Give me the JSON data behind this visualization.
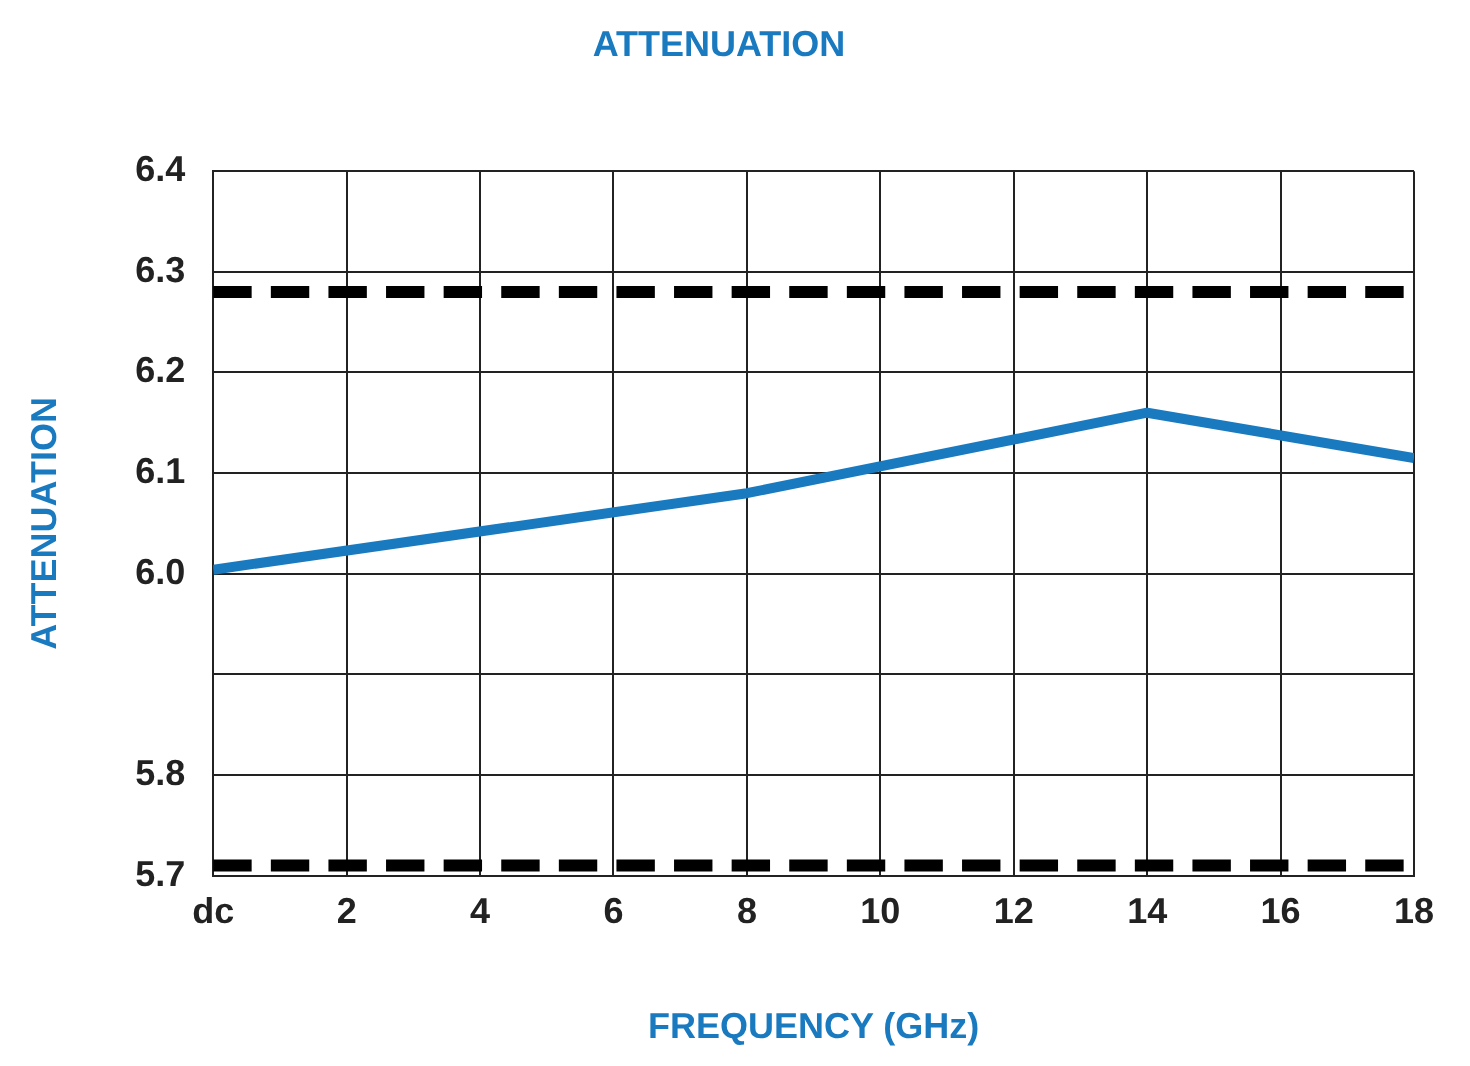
{
  "chart_data": {
    "type": "line",
    "title": "ATTENUATION",
    "xlabel": "FREQUENCY (GHz)",
    "ylabel": "ATTENUATION",
    "x": [
      0,
      8,
      14,
      18
    ],
    "series": [
      {
        "color": "#1a7ac0",
        "values": [
          6.004,
          6.08,
          6.16,
          6.115
        ]
      }
    ],
    "xlim": [
      0,
      18
    ],
    "xticks": [
      {
        "value": 0,
        "label": "dc"
      },
      2,
      4,
      6,
      8,
      10,
      12,
      14,
      16,
      18
    ],
    "ylim": [
      5.7,
      6.4
    ],
    "yticks": [
      5.7,
      5.8,
      {
        "value": 5.9,
        "label": null
      },
      {
        "value": 6.0,
        "label": "6.0"
      },
      6.1,
      6.2,
      6.3,
      6.4
    ],
    "ref_lines": [
      {
        "axis": "y",
        "value": 6.28,
        "color": "#000000",
        "line_style": "dashed"
      },
      {
        "axis": "y",
        "value": 5.71,
        "color": "#000000",
        "line_style": "dashed"
      }
    ],
    "grid": true,
    "legend": false,
    "marker": "none",
    "line_style": "solid"
  }
}
